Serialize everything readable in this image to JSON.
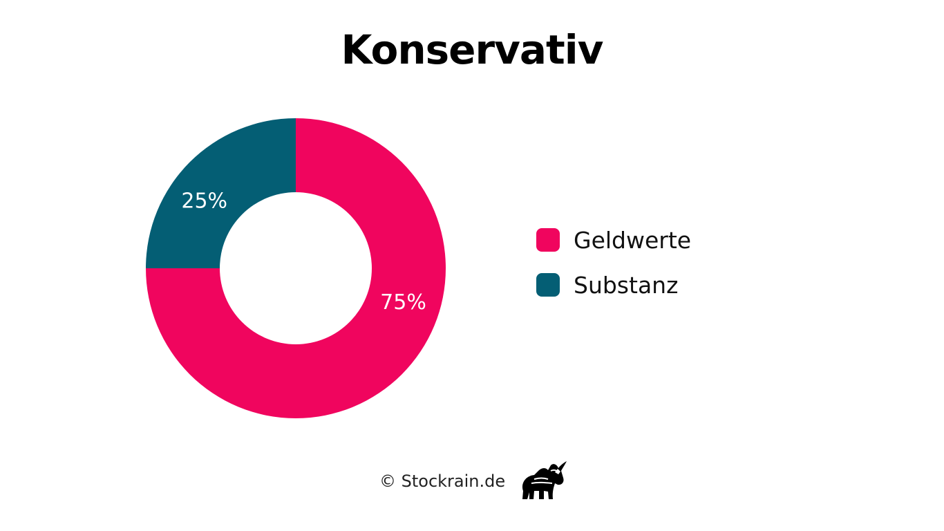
{
  "chart_data": {
    "type": "pie",
    "variant": "donut",
    "title": "Konservativ",
    "categories": [
      "Geldwerte",
      "Substanz"
    ],
    "values": [
      75,
      25
    ],
    "labels": [
      "75%",
      "25%"
    ],
    "colors": [
      "#f0055e",
      "#045e74"
    ],
    "legend_position": "right"
  },
  "footer": {
    "copyright": "© Stockrain.de",
    "logo": "bull-logo"
  }
}
